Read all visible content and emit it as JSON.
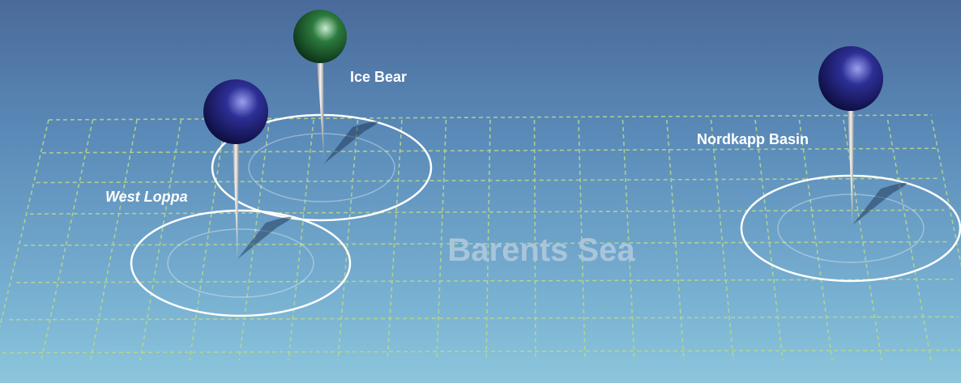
{
  "map": {
    "title": "Barents Sea",
    "pins": [
      {
        "label": "Ice Bear"
      },
      {
        "label": "West Loppa"
      },
      {
        "label": "Nordkapp Basin"
      }
    ]
  }
}
